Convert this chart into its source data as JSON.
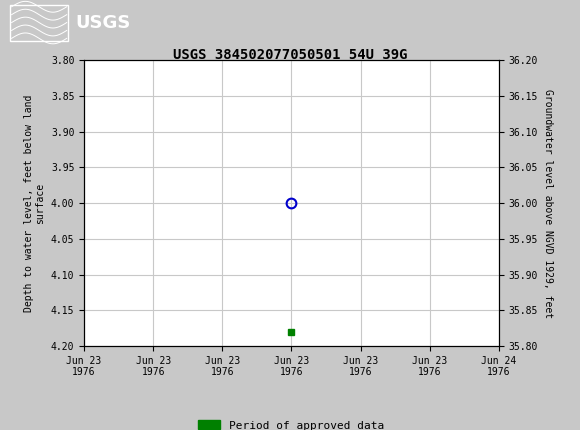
{
  "title": "USGS 384502077050501 54U 39G",
  "header_bg_color": "#1a6b3c",
  "plot_bg_color": "#ffffff",
  "outer_bg_color": "#c8c8c8",
  "left_ylabel": "Depth to water level, feet below land\nsurface",
  "right_ylabel": "Groundwater level above NGVD 1929, feet",
  "ylim_left": [
    3.8,
    4.2
  ],
  "ylim_right": [
    35.8,
    36.2
  ],
  "left_yticks": [
    3.8,
    3.85,
    3.9,
    3.95,
    4.0,
    4.05,
    4.1,
    4.15,
    4.2
  ],
  "right_yticks": [
    36.2,
    36.15,
    36.1,
    36.05,
    36.0,
    35.95,
    35.9,
    35.85,
    35.8
  ],
  "xtick_labels": [
    "Jun 23\n1976",
    "Jun 23\n1976",
    "Jun 23\n1976",
    "Jun 23\n1976",
    "Jun 23\n1976",
    "Jun 23\n1976",
    "Jun 24\n1976"
  ],
  "data_x": [
    3.0
  ],
  "data_y_circle": [
    4.0
  ],
  "data_y_square": [
    4.18
  ],
  "circle_color": "#0000cc",
  "square_color": "#008000",
  "legend_label": "Period of approved data",
  "legend_color": "#008000",
  "grid_color": "#c8c8c8",
  "font_family": "monospace",
  "title_fontsize": 10,
  "tick_fontsize": 7,
  "ylabel_fontsize": 7
}
